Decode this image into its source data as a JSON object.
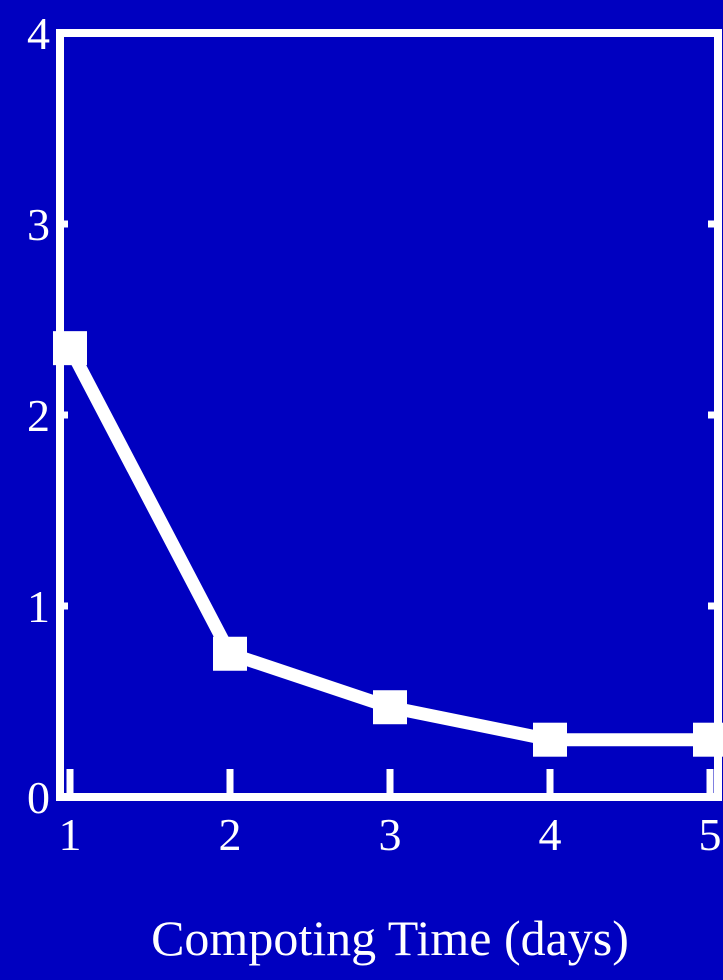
{
  "colors": {
    "background": "#0000c0",
    "foreground": "#ffffff"
  },
  "chart_data": {
    "type": "line",
    "title": "",
    "xlabel": "Compoting Time (days)",
    "ylabel": "",
    "xlim": [
      1,
      5
    ],
    "ylim": [
      0,
      4
    ],
    "x_ticks": [
      1,
      2,
      3,
      4,
      5
    ],
    "y_ticks": [
      0,
      1,
      2,
      3,
      4
    ],
    "grid": false,
    "legend": "none",
    "series": [
      {
        "x": [
          1,
          2,
          3,
          4,
          5
        ],
        "values": [
          2.35,
          0.75,
          0.47,
          0.3,
          0.3
        ],
        "marker": "square"
      }
    ]
  }
}
